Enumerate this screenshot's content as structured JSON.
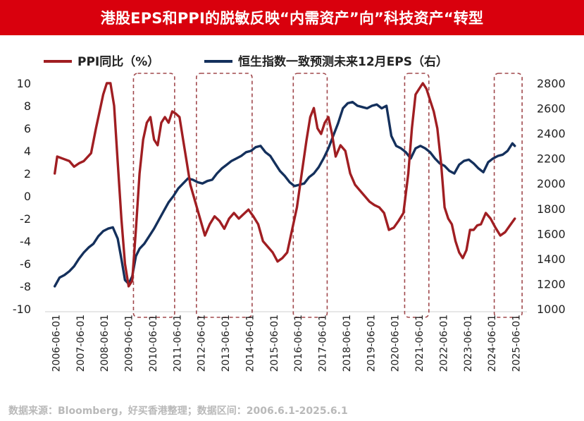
{
  "title": "港股EPS和PPI的脱敏反映“内需资产”向”科技资产“转型",
  "source": "数据来源：Bloomberg，好买香港整理；数据区间：2006.6.1-2025.6.1",
  "colors": {
    "title_bg": "#d9000d",
    "ppi": "#a01e22",
    "eps": "#14305c",
    "box": "#a0484c",
    "source": "#b9b9b9"
  },
  "chart_data": {
    "type": "line",
    "x_tick_labels": [
      "2006-06-01",
      "2007-06-01",
      "2008-06-01",
      "2009-06-01",
      "2010-06-01",
      "2011-06-01",
      "2012-06-01",
      "2013-06-01",
      "2014-06-01",
      "2015-06-01",
      "2016-06-01",
      "2017-06-01",
      "2018-06-01",
      "2019-06-01",
      "2020-06-01",
      "2021-06-01",
      "2022-06-01",
      "2023-06-01",
      "2024-06-01",
      "2025-06-01"
    ],
    "y_left": {
      "range": [
        -10,
        10
      ],
      "ticks": [
        10,
        8,
        6,
        4,
        2,
        0,
        -2,
        -4,
        -6,
        -8,
        -10
      ]
    },
    "y_right": {
      "range": [
        1000,
        2800
      ],
      "ticks": [
        2800,
        2600,
        2400,
        2200,
        2000,
        1800,
        1600,
        1400,
        1200,
        1000
      ]
    },
    "legend_position": "top",
    "series": [
      {
        "name": "PPI同比（%）",
        "axis": "left",
        "x": [
          2006.4,
          2006.5,
          2006.75,
          2007.0,
          2007.2,
          2007.4,
          2007.6,
          2007.9,
          2008.1,
          2008.3,
          2008.4,
          2008.55,
          2008.7,
          2008.85,
          2009.0,
          2009.15,
          2009.3,
          2009.45,
          2009.6,
          2009.75,
          2009.9,
          2010.05,
          2010.2,
          2010.35,
          2010.5,
          2010.65,
          2010.8,
          2010.95,
          2011.1,
          2011.25,
          2011.4,
          2011.55,
          2011.7,
          2011.85,
          2012.0,
          2012.2,
          2012.4,
          2012.6,
          2012.8,
          2013.0,
          2013.2,
          2013.4,
          2013.6,
          2013.8,
          2014.0,
          2014.2,
          2014.4,
          2014.6,
          2014.8,
          2015.0,
          2015.2,
          2015.4,
          2015.6,
          2015.8,
          2016.0,
          2016.2,
          2016.4,
          2016.6,
          2016.8,
          2016.95,
          2017.1,
          2017.25,
          2017.4,
          2017.55,
          2017.7,
          2017.85,
          2018.0,
          2018.2,
          2018.4,
          2018.6,
          2018.8,
          2019.0,
          2019.2,
          2019.4,
          2019.6,
          2019.8,
          2020.0,
          2020.2,
          2020.4,
          2020.6,
          2020.8,
          2021.0,
          2021.15,
          2021.3,
          2021.45,
          2021.6,
          2021.75,
          2021.9,
          2022.05,
          2022.2,
          2022.35,
          2022.5,
          2022.65,
          2022.8,
          2022.95,
          2023.1,
          2023.25,
          2023.4,
          2023.55,
          2023.7,
          2023.85,
          2024.0,
          2024.2,
          2024.4,
          2024.6,
          2024.8,
          2025.0,
          2025.2,
          2025.4
        ],
        "y": [
          2.0,
          3.5,
          3.3,
          3.1,
          2.6,
          2.9,
          3.1,
          3.8,
          6.0,
          8.0,
          9.0,
          10.0,
          10.0,
          8.0,
          3.0,
          -2.0,
          -6.0,
          -8.0,
          -7.5,
          -3.0,
          2.0,
          5.0,
          6.5,
          7.0,
          5.0,
          4.5,
          6.5,
          7.0,
          6.5,
          7.5,
          7.3,
          7.0,
          5.0,
          3.0,
          1.0,
          -0.5,
          -2.0,
          -3.5,
          -2.5,
          -1.8,
          -2.2,
          -2.9,
          -2.0,
          -1.5,
          -2.0,
          -1.6,
          -1.2,
          -1.8,
          -2.5,
          -4.0,
          -4.5,
          -5.0,
          -5.8,
          -5.5,
          -5.0,
          -3.0,
          -1.0,
          2.0,
          5.0,
          7.0,
          7.8,
          6.0,
          5.5,
          6.5,
          7.0,
          5.5,
          3.5,
          4.5,
          4.0,
          2.0,
          1.0,
          0.5,
          0.0,
          -0.5,
          -0.8,
          -1.0,
          -1.5,
          -3.0,
          -2.8,
          -2.2,
          -1.5,
          2.0,
          6.0,
          9.0,
          9.5,
          10.0,
          9.5,
          8.5,
          7.5,
          6.0,
          3.0,
          -1.0,
          -2.0,
          -2.5,
          -4.0,
          -5.0,
          -5.5,
          -4.8,
          -3.0,
          -3.0,
          -2.6,
          -2.5,
          -1.5,
          -2.0,
          -2.8,
          -3.5,
          -3.2,
          -2.6,
          -2.0
        ]
      },
      {
        "name": "恒生指数一致预测未来12月EPS（右）",
        "axis": "right",
        "x": [
          2006.4,
          2006.6,
          2006.8,
          2007.0,
          2007.2,
          2007.4,
          2007.6,
          2007.8,
          2008.0,
          2008.2,
          2008.4,
          2008.6,
          2008.8,
          2009.0,
          2009.15,
          2009.3,
          2009.45,
          2009.6,
          2009.75,
          2009.9,
          2010.1,
          2010.3,
          2010.5,
          2010.7,
          2010.9,
          2011.1,
          2011.3,
          2011.5,
          2011.7,
          2011.9,
          2012.1,
          2012.3,
          2012.5,
          2012.7,
          2012.9,
          2013.1,
          2013.3,
          2013.5,
          2013.7,
          2013.9,
          2014.1,
          2014.3,
          2014.5,
          2014.7,
          2014.9,
          2015.1,
          2015.3,
          2015.5,
          2015.7,
          2015.9,
          2016.1,
          2016.3,
          2016.5,
          2016.7,
          2016.9,
          2017.1,
          2017.3,
          2017.5,
          2017.7,
          2017.9,
          2018.1,
          2018.3,
          2018.5,
          2018.7,
          2018.9,
          2019.1,
          2019.3,
          2019.5,
          2019.7,
          2019.9,
          2020.1,
          2020.3,
          2020.5,
          2020.7,
          2020.9,
          2021.1,
          2021.3,
          2021.5,
          2021.7,
          2021.9,
          2022.1,
          2022.3,
          2022.5,
          2022.7,
          2022.9,
          2023.1,
          2023.3,
          2023.5,
          2023.7,
          2023.9,
          2024.1,
          2024.3,
          2024.5,
          2024.7,
          2024.9,
          2025.1,
          2025.3,
          2025.4
        ],
        "y": [
          1180,
          1250,
          1270,
          1300,
          1340,
          1400,
          1450,
          1490,
          1520,
          1580,
          1620,
          1640,
          1650,
          1560,
          1400,
          1230,
          1200,
          1260,
          1420,
          1480,
          1520,
          1580,
          1640,
          1710,
          1780,
          1850,
          1900,
          1960,
          2000,
          2040,
          2030,
          2010,
          2000,
          2020,
          2030,
          2080,
          2120,
          2150,
          2180,
          2200,
          2220,
          2250,
          2260,
          2290,
          2300,
          2250,
          2220,
          2160,
          2100,
          2060,
          2010,
          1980,
          1990,
          2000,
          2050,
          2080,
          2130,
          2200,
          2280,
          2380,
          2480,
          2600,
          2640,
          2650,
          2620,
          2610,
          2600,
          2620,
          2630,
          2600,
          2620,
          2380,
          2300,
          2280,
          2250,
          2200,
          2280,
          2300,
          2280,
          2250,
          2200,
          2160,
          2140,
          2100,
          2080,
          2150,
          2180,
          2190,
          2160,
          2120,
          2090,
          2170,
          2200,
          2220,
          2230,
          2260,
          2320,
          2300
        ]
      }
    ],
    "highlight_ranges": [
      [
        2009.65,
        2011.35
      ],
      [
        2012.25,
        2014.55
      ],
      [
        2016.25,
        2017.65
      ],
      [
        2020.85,
        2021.85
      ],
      [
        2024.55,
        2025.7
      ]
    ]
  }
}
